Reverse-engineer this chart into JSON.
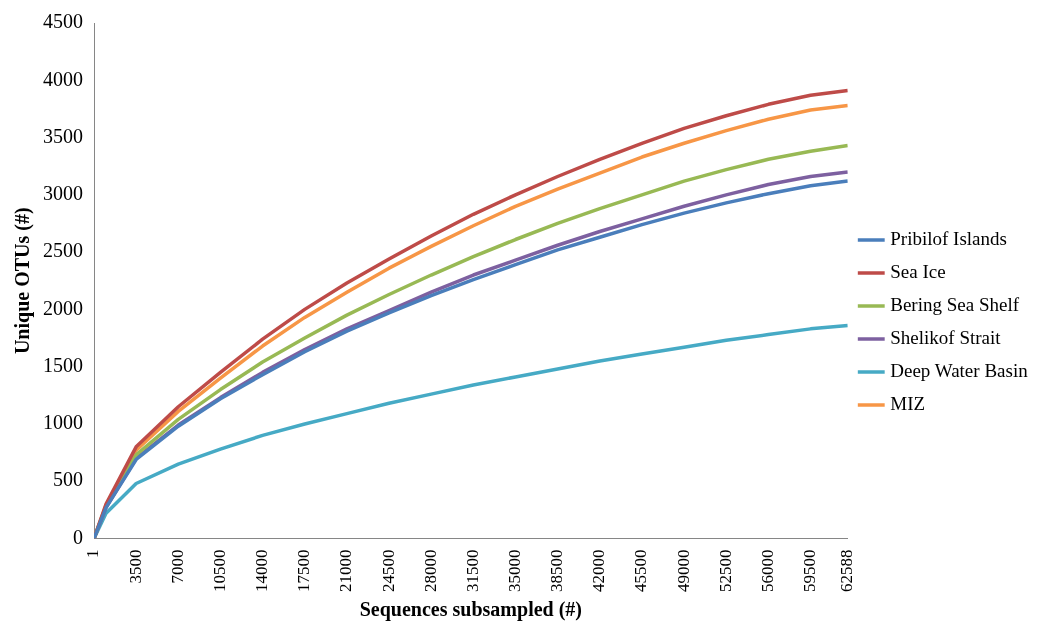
{
  "chart_data": {
    "type": "line",
    "xlabel": "Sequences subsampled (#)",
    "ylabel": "Unique OTUs (#)",
    "x": [
      1,
      1000,
      3500,
      7000,
      10500,
      14000,
      17500,
      21000,
      24500,
      28000,
      31500,
      35000,
      38500,
      42000,
      45500,
      49000,
      52500,
      56000,
      59500,
      62588
    ],
    "xlim": [
      1,
      62588
    ],
    "xticks": [
      1,
      3500,
      7000,
      10500,
      14000,
      17500,
      21000,
      24500,
      28000,
      31500,
      35000,
      38500,
      42000,
      45500,
      49000,
      52500,
      56000,
      59500,
      62588
    ],
    "ylim": [
      0,
      4500
    ],
    "yticks": [
      0,
      500,
      1000,
      1500,
      2000,
      2500,
      3000,
      3500,
      4000,
      4500
    ],
    "grid": false,
    "legend": "right",
    "marker": "none",
    "line_style": "solid",
    "series": [
      {
        "name": "Pribilof Islands",
        "color": "#4a7ebb",
        "values": [
          0,
          270,
          690,
          980,
          1220,
          1430,
          1630,
          1810,
          1970,
          2120,
          2260,
          2390,
          2520,
          2630,
          2740,
          2840,
          2930,
          3010,
          3080,
          3120
        ]
      },
      {
        "name": "Sea Ice",
        "color": "#be4b48",
        "values": [
          0,
          300,
          800,
          1150,
          1450,
          1740,
          2000,
          2230,
          2440,
          2640,
          2830,
          3000,
          3160,
          3310,
          3450,
          3580,
          3690,
          3790,
          3870,
          3910
        ]
      },
      {
        "name": "Bering Sea Shelf",
        "color": "#98b954",
        "values": [
          0,
          280,
          730,
          1040,
          1300,
          1540,
          1750,
          1950,
          2130,
          2300,
          2460,
          2610,
          2750,
          2880,
          3000,
          3120,
          3220,
          3310,
          3380,
          3430
        ]
      },
      {
        "name": "Shelikof Strait",
        "color": "#7d60a0",
        "values": [
          0,
          270,
          700,
          990,
          1230,
          1450,
          1650,
          1830,
          1990,
          2150,
          2300,
          2430,
          2560,
          2680,
          2790,
          2900,
          3000,
          3090,
          3160,
          3200
        ]
      },
      {
        "name": "Deep Water Basin",
        "color": "#46aac5",
        "values": [
          0,
          220,
          480,
          650,
          780,
          900,
          1000,
          1090,
          1180,
          1260,
          1340,
          1410,
          1480,
          1550,
          1610,
          1670,
          1730,
          1780,
          1830,
          1860
        ]
      },
      {
        "name": "MIZ",
        "color": "#f79646",
        "values": [
          0,
          290,
          770,
          1110,
          1400,
          1680,
          1930,
          2150,
          2360,
          2550,
          2730,
          2900,
          3050,
          3190,
          3330,
          3450,
          3560,
          3660,
          3740,
          3780
        ]
      }
    ]
  }
}
